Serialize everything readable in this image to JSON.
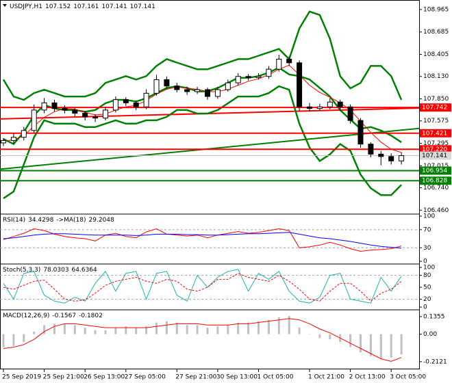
{
  "chart_data": [
    {
      "type": "candlestick",
      "heading": [
        "USDJPY,H1",
        107.152,
        107.161,
        107.141,
        107.141
      ],
      "categories": [
        "25 Sep 2019",
        null,
        null,
        null,
        "25 Sep 21:00",
        null,
        null,
        null,
        "26 Sep 13:00",
        null,
        null,
        null,
        "27 Sep 05:00",
        null,
        null,
        null,
        null,
        "27 Sep 21:00",
        null,
        null,
        null,
        "30 Sep 13:00",
        null,
        null,
        null,
        "1 Oct 05:00",
        null,
        null,
        null,
        null,
        "1 Oct 21:00",
        null,
        null,
        null,
        "2 Oct 13:00",
        null,
        null,
        null,
        "3 Oct 05:00",
        null
      ],
      "candles": [
        [
          107.3,
          107.36,
          107.26,
          107.33
        ],
        [
          107.33,
          107.42,
          107.29,
          107.37
        ],
        [
          107.37,
          107.5,
          107.33,
          107.455
        ],
        [
          107.455,
          107.78,
          107.42,
          107.71
        ],
        [
          107.71,
          107.86,
          107.67,
          107.8
        ],
        [
          107.8,
          107.84,
          107.69,
          107.73
        ],
        [
          107.73,
          107.77,
          107.67,
          107.71
        ],
        [
          107.71,
          107.74,
          107.63,
          107.67
        ],
        [
          107.67,
          107.7,
          107.58,
          107.625
        ],
        [
          107.625,
          107.66,
          107.56,
          107.61
        ],
        [
          107.61,
          107.75,
          107.58,
          107.71
        ],
        [
          107.71,
          107.88,
          107.68,
          107.84
        ],
        [
          107.84,
          107.87,
          107.76,
          107.8
        ],
        [
          107.8,
          107.83,
          107.71,
          107.75
        ],
        [
          107.75,
          107.97,
          107.72,
          107.92
        ],
        [
          107.92,
          108.15,
          107.89,
          108.09
        ],
        [
          108.09,
          108.13,
          107.97,
          108.01
        ],
        [
          108.01,
          108.05,
          107.93,
          107.965
        ],
        [
          107.965,
          108.0,
          107.9,
          107.94
        ],
        [
          107.94,
          108.0,
          107.91,
          107.965
        ],
        [
          107.965,
          107.99,
          107.84,
          107.88
        ],
        [
          107.88,
          108.0,
          107.85,
          107.965
        ],
        [
          107.965,
          108.09,
          107.94,
          108.05
        ],
        [
          108.05,
          108.17,
          108.02,
          108.13
        ],
        [
          108.13,
          108.16,
          108.08,
          108.115
        ],
        [
          108.115,
          108.17,
          108.09,
          108.13
        ],
        [
          108.13,
          108.26,
          108.1,
          108.22
        ],
        [
          108.22,
          108.4,
          108.19,
          108.345
        ],
        [
          108.345,
          108.38,
          108.26,
          108.3
        ],
        [
          108.3,
          108.33,
          107.7,
          107.75
        ],
        [
          107.75,
          107.8,
          107.69,
          107.73
        ],
        [
          107.73,
          107.79,
          107.7,
          107.75
        ],
        [
          107.75,
          107.86,
          107.72,
          107.81
        ],
        [
          107.81,
          107.84,
          107.7,
          107.75
        ],
        [
          107.75,
          107.78,
          107.54,
          107.58
        ],
        [
          107.58,
          107.61,
          107.24,
          107.285
        ],
        [
          107.285,
          107.31,
          107.12,
          107.16
        ],
        [
          107.16,
          107.2,
          107.02,
          107.13
        ],
        [
          107.13,
          107.17,
          107.03,
          107.075
        ],
        [
          107.075,
          107.18,
          107.03,
          107.141
        ]
      ],
      "up_color": "#ffffff",
      "down_color": "#000000",
      "series": [
        {
          "color": "#008000",
          "width": 2.5,
          "values": [
            108.091,
            107.879,
            107.837,
            107.922,
            107.964,
            107.922,
            107.879,
            107.879,
            107.879,
            107.922,
            108.049,
            108.091,
            108.134,
            108.091,
            108.134,
            108.261,
            108.346,
            108.303,
            108.261,
            108.219,
            108.219,
            108.261,
            108.303,
            108.346,
            108.346,
            108.388,
            108.431,
            108.473,
            108.346,
            108.728,
            108.94,
            108.897,
            108.6,
            108.134,
            107.981,
            108.049,
            108.261,
            108.261,
            108.134,
            107.837
          ]
        },
        {
          "color": "#008000",
          "width": 2.5,
          "values": [
            107.349,
            107.286,
            107.434,
            107.646,
            107.773,
            107.731,
            107.71,
            107.71,
            107.689,
            107.71,
            107.795,
            107.837,
            107.837,
            107.816,
            107.858,
            107.922,
            107.986,
            108.007,
            107.986,
            107.943,
            107.943,
            107.986,
            108.049,
            108.113,
            108.113,
            108.134,
            108.177,
            108.24,
            108.155,
            108.134,
            108.092,
            107.986,
            107.879,
            107.71,
            107.591,
            107.477,
            107.498,
            107.455,
            107.392,
            107.307
          ]
        },
        {
          "color": "#008000",
          "width": 2.5,
          "values": [
            106.607,
            106.692,
            107.031,
            107.37,
            107.582,
            107.54,
            107.54,
            107.54,
            107.498,
            107.498,
            107.54,
            107.582,
            107.54,
            107.54,
            107.582,
            107.582,
            107.625,
            107.71,
            107.71,
            107.667,
            107.667,
            107.71,
            107.794,
            107.879,
            107.879,
            107.879,
            107.922,
            108.007,
            107.964,
            107.54,
            107.243,
            107.074,
            107.158,
            107.286,
            107.201,
            106.904,
            106.734,
            106.649,
            106.649,
            106.777
          ]
        },
        {
          "color": "#ff0000",
          "width": 1,
          "values": [
            107.32,
            107.34,
            107.39,
            107.51,
            107.62,
            107.69,
            107.73,
            107.72,
            107.68,
            107.65,
            107.66,
            107.71,
            107.75,
            107.77,
            107.83,
            107.91,
            107.97,
            108.0,
            107.98,
            107.97,
            107.94,
            107.94,
            107.97,
            108.02,
            108.07,
            108.1,
            108.15,
            108.22,
            108.27,
            108.15,
            108.02,
            107.93,
            107.87,
            107.8,
            107.71,
            107.57,
            107.43,
            107.31,
            107.22,
            107.18
          ]
        }
      ],
      "trendlines": [
        {
          "color": "#008000",
          "from": 106.972,
          "to": 107.481
        },
        {
          "color": "#ff0000",
          "from": 107.599,
          "to": 107.735
        }
      ],
      "levels": [
        {
          "value": 107.742,
          "color": "#ff0000"
        },
        {
          "value": 107.421,
          "color": "#ff0000"
        },
        {
          "value": 107.22,
          "label": "107.220",
          "color": "#ff0000"
        },
        {
          "value": 106.954,
          "color": "#008000"
        },
        {
          "value": 106.828,
          "color": "#008000"
        }
      ],
      "current": {
        "value": 107.141,
        "color": "#d9d9d9"
      },
      "ylim": [
        106.42,
        109.067
      ],
      "yticks": [
        108.965,
        108.685,
        108.405,
        {
          "value": 108.13,
          "label": "108.130"
        },
        {
          "value": 107.85,
          "label": "107.850"
        },
        107.575,
        107.295,
        107.015,
        {
          "value": 106.74,
          "label": "106.740"
        },
        {
          "value": 106.46,
          "label": "106.460"
        }
      ]
    },
    {
      "type": "line",
      "heading": [
        "RSI(14)",
        34.4298,
        "->MA(18)",
        29.2048
      ],
      "series": [
        {
          "color": "#ff0000",
          "width": 1,
          "values": [
            48,
            55,
            62,
            72,
            68,
            60,
            55,
            52,
            50,
            45,
            58,
            62,
            55,
            52,
            65,
            72,
            60,
            58,
            56,
            58,
            52,
            58,
            62,
            66,
            62,
            64,
            68,
            72,
            68,
            30,
            32,
            36,
            42,
            36,
            28,
            22,
            25,
            26,
            28,
            34
          ]
        },
        {
          "color": "#0000ff",
          "width": 1,
          "values": [
            50,
            52,
            55,
            58,
            60,
            61,
            61,
            60,
            59,
            58,
            58,
            58,
            58,
            57,
            58,
            60,
            60,
            60,
            59,
            59,
            58,
            58,
            59,
            60,
            61,
            61,
            62,
            63,
            64,
            60,
            56,
            52,
            50,
            47,
            44,
            40,
            36,
            33,
            31,
            29
          ]
        }
      ],
      "levels": [
        70,
        30
      ],
      "ylim": [
        -4.4,
        103
      ],
      "yticks": [
        100,
        70,
        30,
        0
      ]
    },
    {
      "type": "line",
      "heading": [
        "Stoch(5,3,3)",
        78.0303,
        64.6364
      ],
      "series": [
        {
          "color": "#20b2aa",
          "width": 1,
          "values": [
            60,
            20,
            85,
            90,
            30,
            15,
            10,
            25,
            15,
            60,
            90,
            40,
            85,
            90,
            20,
            85,
            90,
            30,
            15,
            80,
            50,
            75,
            90,
            95,
            40,
            85,
            70,
            90,
            40,
            15,
            10,
            25,
            80,
            85,
            20,
            15,
            10,
            75,
            40,
            78
          ]
        },
        {
          "color": "#ff0000",
          "width": 1,
          "dash": true,
          "values": [
            50,
            45,
            55,
            65,
            68,
            45,
            20,
            15,
            18,
            35,
            55,
            65,
            70,
            75,
            65,
            60,
            70,
            65,
            45,
            40,
            50,
            70,
            70,
            85,
            75,
            70,
            65,
            80,
            65,
            45,
            20,
            15,
            40,
            60,
            60,
            40,
            15,
            35,
            45,
            65
          ]
        }
      ],
      "levels": [
        80,
        20
      ],
      "ylim": [
        -5.1,
        106.9
      ],
      "yticks": [
        100,
        80,
        50,
        20,
        0
      ]
    },
    {
      "type": "bar",
      "heading": [
        "MACD(12,26,9)",
        -0.1567,
        -0.1802
      ],
      "series": [
        {
          "type": "bar",
          "color": "#c0c0c0",
          "values": [
            -0.1,
            -0.09,
            -0.06,
            0.02,
            0.07,
            0.08,
            0.08,
            0.07,
            0.05,
            0.03,
            0.03,
            0.05,
            0.06,
            0.05,
            0.06,
            0.09,
            0.1,
            0.09,
            0.07,
            0.07,
            0.05,
            0.06,
            0.07,
            0.09,
            0.09,
            0.1,
            0.11,
            0.13,
            0.14,
            0.05,
            0.0,
            -0.03,
            -0.04,
            -0.06,
            -0.1,
            -0.14,
            -0.17,
            -0.19,
            -0.18,
            -0.157
          ]
        },
        {
          "type": "line",
          "color": "#ff0000",
          "width": 1,
          "values": [
            -0.11,
            -0.1,
            -0.08,
            -0.04,
            0.02,
            0.06,
            0.08,
            0.08,
            0.07,
            0.06,
            0.05,
            0.05,
            0.05,
            0.05,
            0.05,
            0.06,
            0.07,
            0.08,
            0.08,
            0.08,
            0.07,
            0.07,
            0.07,
            0.08,
            0.08,
            0.09,
            0.1,
            0.11,
            0.12,
            0.11,
            0.08,
            0.04,
            0.01,
            -0.03,
            -0.07,
            -0.11,
            -0.15,
            -0.19,
            -0.21,
            -0.18
          ]
        }
      ],
      "ylim": [
        -0.271,
        0.1824
      ],
      "yticks": [
        0.1355,
        {
          "value": 0,
          "label": "0.00"
        },
        -0.2121
      ]
    }
  ]
}
